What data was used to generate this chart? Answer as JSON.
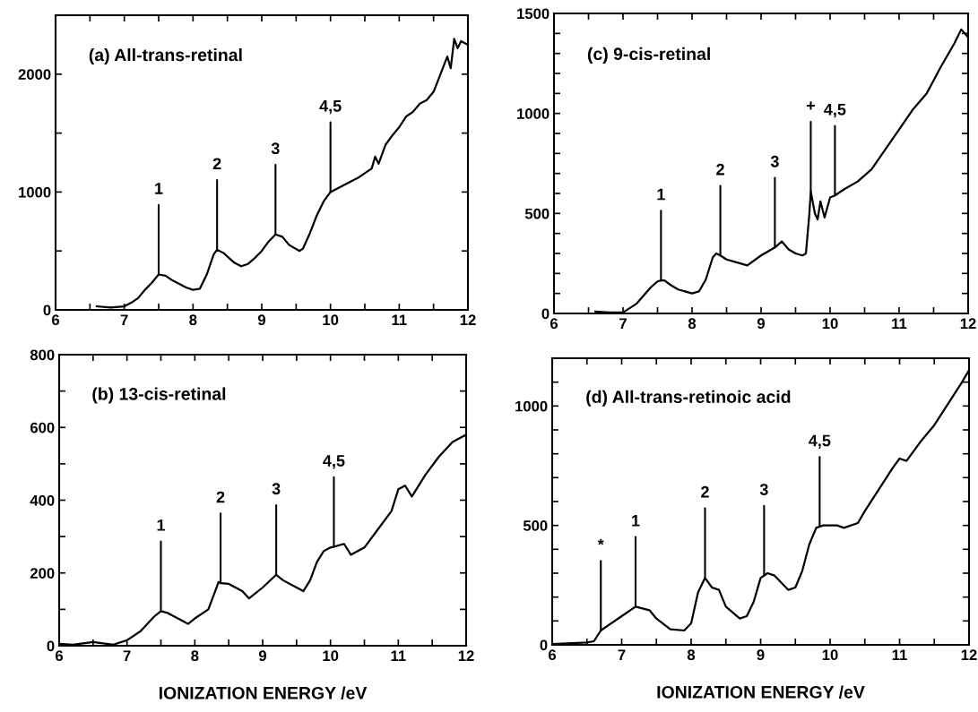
{
  "chart_data": [
    {
      "type": "line",
      "title": "(a) All-trans-retinal",
      "xlim": [
        6,
        12
      ],
      "ylim": [
        0,
        2500
      ],
      "xticks": [
        6,
        {
          "value": 6.5,
          "label": null
        },
        7,
        {
          "value": 7.5,
          "label": null
        },
        8,
        {
          "value": 8.5,
          "label": null
        },
        9,
        {
          "value": 9.5,
          "label": null
        },
        10,
        {
          "value": 10.5,
          "label": null
        },
        11,
        {
          "value": 11.5,
          "label": null
        },
        12
      ],
      "yticks": [
        0,
        {
          "value": 500,
          "label": null
        },
        1000,
        {
          "value": 1500,
          "label": null
        },
        2000,
        {
          "value": 2500,
          "label": null
        }
      ],
      "series": [
        {
          "color": "#000000",
          "x": [
            6.6,
            6.8,
            7.0,
            7.1,
            7.2,
            7.3,
            7.4,
            7.5,
            7.6,
            7.7,
            7.8,
            7.9,
            8.0,
            8.1,
            8.2,
            8.3,
            8.35,
            8.45,
            8.6,
            8.7,
            8.8,
            8.9,
            9.0,
            9.1,
            9.2,
            9.3,
            9.4,
            9.55,
            9.6,
            9.7,
            9.8,
            9.9,
            10.0,
            10.2,
            10.4,
            10.6,
            10.65,
            10.7,
            10.8,
            10.9,
            11.0,
            11.1,
            11.2,
            11.3,
            11.4,
            11.5,
            11.6,
            11.7,
            11.75,
            11.8,
            11.85,
            11.9,
            12.0
          ],
          "values": [
            30,
            20,
            30,
            60,
            100,
            170,
            230,
            300,
            290,
            250,
            220,
            190,
            170,
            180,
            300,
            470,
            510,
            480,
            400,
            370,
            390,
            440,
            500,
            580,
            640,
            620,
            550,
            500,
            520,
            650,
            800,
            920,
            1000,
            1060,
            1120,
            1200,
            1300,
            1240,
            1400,
            1480,
            1550,
            1640,
            1680,
            1750,
            1780,
            1850,
            2000,
            2150,
            2050,
            2300,
            2220,
            2280,
            2250
          ]
        }
      ],
      "annotations": [
        {
          "text": "1",
          "x": 7.5,
          "y": 300
        },
        {
          "text": "2",
          "x": 8.35,
          "y": 510
        },
        {
          "text": "3",
          "x": 9.2,
          "y": 640
        },
        {
          "text": "4,5",
          "x": 10.0,
          "y": 1000
        }
      ]
    },
    {
      "type": "line",
      "title": "(c) 9-cis-retinal",
      "xlim": [
        6,
        12
      ],
      "ylim": [
        0,
        1500
      ],
      "xticks": [
        6,
        {
          "value": 6.5,
          "label": null
        },
        7,
        {
          "value": 7.5,
          "label": null
        },
        8,
        {
          "value": 8.5,
          "label": null
        },
        9,
        {
          "value": 9.5,
          "label": null
        },
        10,
        {
          "value": 10.5,
          "label": null
        },
        11,
        {
          "value": 11.5,
          "label": null
        },
        12
      ],
      "yticks": [
        0,
        {
          "value": 100,
          "label": null
        },
        {
          "value": 200,
          "label": null
        },
        {
          "value": 300,
          "label": null
        },
        {
          "value": 400,
          "label": null
        },
        500,
        {
          "value": 600,
          "label": null
        },
        {
          "value": 700,
          "label": null
        },
        {
          "value": 800,
          "label": null
        },
        {
          "value": 900,
          "label": null
        },
        1000,
        {
          "value": 1100,
          "label": null
        },
        {
          "value": 1200,
          "label": null
        },
        {
          "value": 1300,
          "label": null
        },
        {
          "value": 1400,
          "label": null
        },
        1500
      ],
      "series": [
        {
          "color": "#000000",
          "x": [
            6.6,
            6.8,
            7.0,
            7.2,
            7.4,
            7.5,
            7.55,
            7.6,
            7.7,
            7.8,
            8.0,
            8.1,
            8.2,
            8.3,
            8.35,
            8.41,
            8.5,
            8.7,
            8.8,
            9.0,
            9.2,
            9.3,
            9.4,
            9.5,
            9.6,
            9.65,
            9.7,
            9.72,
            9.78,
            9.82,
            9.86,
            9.92,
            10.0,
            10.07,
            10.2,
            10.4,
            10.6,
            10.8,
            11.0,
            11.2,
            11.4,
            11.6,
            11.8,
            11.9,
            12.0
          ],
          "values": [
            10,
            5,
            5,
            50,
            130,
            160,
            165,
            165,
            140,
            120,
            100,
            110,
            170,
            280,
            300,
            290,
            270,
            250,
            240,
            290,
            330,
            360,
            320,
            300,
            290,
            300,
            500,
            610,
            500,
            470,
            560,
            480,
            580,
            590,
            620,
            660,
            720,
            820,
            920,
            1020,
            1100,
            1230,
            1350,
            1420,
            1380
          ]
        }
      ],
      "annotations": [
        {
          "text": "1",
          "x": 7.55,
          "y": 165
        },
        {
          "text": "2",
          "x": 8.41,
          "y": 290
        },
        {
          "text": "3",
          "x": 9.2,
          "y": 330
        },
        {
          "text": "+",
          "x": 9.72,
          "y": 610
        },
        {
          "text": "4,5",
          "x": 10.07,
          "y": 590
        }
      ]
    },
    {
      "type": "line",
      "title": "(b) 13-cis-retinal",
      "xlabel": "IONIZATION ENERGY /eV",
      "xlim": [
        6,
        12
      ],
      "ylim": [
        0,
        800
      ],
      "xticks": [
        6,
        {
          "value": 6.5,
          "label": null
        },
        7,
        {
          "value": 7.5,
          "label": null
        },
        8,
        {
          "value": 8.5,
          "label": null
        },
        9,
        {
          "value": 9.5,
          "label": null
        },
        10,
        {
          "value": 10.5,
          "label": null
        },
        11,
        {
          "value": 11.5,
          "label": null
        },
        12
      ],
      "yticks": [
        0,
        {
          "value": 100,
          "label": null
        },
        200,
        {
          "value": 300,
          "label": null
        },
        400,
        {
          "value": 500,
          "label": null
        },
        600,
        {
          "value": 700,
          "label": null
        },
        800
      ],
      "series": [
        {
          "color": "#000000",
          "x": [
            6.0,
            6.2,
            6.5,
            6.8,
            7.0,
            7.2,
            7.4,
            7.5,
            7.6,
            7.8,
            7.9,
            8.0,
            8.2,
            8.3,
            8.35,
            8.38,
            8.5,
            8.7,
            8.8,
            9.0,
            9.2,
            9.3,
            9.5,
            9.6,
            9.7,
            9.8,
            9.9,
            10.0,
            10.05,
            10.2,
            10.3,
            10.5,
            10.7,
            10.9,
            11.0,
            11.1,
            11.2,
            11.4,
            11.6,
            11.8,
            12.0
          ],
          "values": [
            5,
            3,
            10,
            3,
            15,
            40,
            80,
            95,
            90,
            70,
            60,
            75,
            100,
            150,
            175,
            172,
            170,
            150,
            130,
            160,
            195,
            180,
            160,
            150,
            180,
            230,
            260,
            270,
            272,
            280,
            250,
            270,
            320,
            370,
            430,
            440,
            410,
            470,
            520,
            560,
            580
          ]
        }
      ],
      "annotations": [
        {
          "text": "1",
          "x": 7.5,
          "y": 95
        },
        {
          "text": "2",
          "x": 8.38,
          "y": 172
        },
        {
          "text": "3",
          "x": 9.2,
          "y": 195
        },
        {
          "text": "4,5",
          "x": 10.05,
          "y": 272
        }
      ]
    },
    {
      "type": "line",
      "title": "(d) All-trans-retinoic acid",
      "xlabel": "IONIZATION ENERGY /eV",
      "xlim": [
        6,
        12
      ],
      "ylim": [
        0,
        1200
      ],
      "xticks": [
        6,
        {
          "value": 6.5,
          "label": null
        },
        7,
        {
          "value": 7.5,
          "label": null
        },
        8,
        {
          "value": 8.5,
          "label": null
        },
        9,
        {
          "value": 9.5,
          "label": null
        },
        10,
        {
          "value": 10.5,
          "label": null
        },
        11,
        {
          "value": 11.5,
          "label": null
        },
        12
      ],
      "yticks": [
        0,
        {
          "value": 100,
          "label": null
        },
        {
          "value": 200,
          "label": null
        },
        {
          "value": 300,
          "label": null
        },
        {
          "value": 400,
          "label": null
        },
        500,
        {
          "value": 600,
          "label": null
        },
        {
          "value": 700,
          "label": null
        },
        {
          "value": 800,
          "label": null
        },
        {
          "value": 900,
          "label": null
        },
        1000,
        {
          "value": 1100,
          "label": null
        }
      ],
      "series": [
        {
          "color": "#000000",
          "x": [
            6.0,
            6.5,
            6.6,
            6.7,
            6.8,
            7.0,
            7.2,
            7.4,
            7.5,
            7.7,
            7.9,
            8.0,
            8.1,
            8.2,
            8.3,
            8.4,
            8.5,
            8.7,
            8.8,
            8.9,
            9.0,
            9.05,
            9.1,
            9.2,
            9.3,
            9.4,
            9.5,
            9.6,
            9.7,
            9.8,
            9.85,
            9.9,
            10.1,
            10.2,
            10.4,
            10.5,
            10.7,
            10.9,
            11.0,
            11.1,
            11.3,
            11.5,
            11.7,
            11.9,
            12.0
          ],
          "values": [
            3,
            10,
            15,
            60,
            80,
            120,
            160,
            145,
            110,
            65,
            60,
            90,
            220,
            280,
            240,
            230,
            160,
            110,
            120,
            180,
            280,
            290,
            300,
            290,
            260,
            230,
            240,
            310,
            420,
            490,
            495,
            500,
            500,
            490,
            510,
            560,
            650,
            740,
            780,
            770,
            850,
            920,
            1010,
            1100,
            1150
          ]
        }
      ],
      "annotations": [
        {
          "text": "*",
          "x": 6.7,
          "y": 60
        },
        {
          "text": "1",
          "x": 7.2,
          "y": 160
        },
        {
          "text": "2",
          "x": 8.2,
          "y": 280
        },
        {
          "text": "3",
          "x": 9.05,
          "y": 290
        },
        {
          "text": "4,5",
          "x": 9.85,
          "y": 495
        }
      ]
    }
  ]
}
